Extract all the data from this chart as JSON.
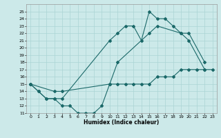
{
  "xlabel": "Humidex (Indice chaleur)",
  "xlim": [
    -0.5,
    23.5
  ],
  "ylim": [
    11,
    26
  ],
  "yticks": [
    11,
    12,
    13,
    14,
    15,
    16,
    17,
    18,
    19,
    20,
    21,
    22,
    23,
    24,
    25
  ],
  "xticks": [
    0,
    1,
    2,
    3,
    4,
    5,
    6,
    7,
    8,
    9,
    10,
    11,
    12,
    13,
    14,
    15,
    16,
    17,
    18,
    19,
    20,
    21,
    22,
    23
  ],
  "bg_color": "#cce9e9",
  "grid_color": "#aad4d4",
  "line_color": "#1a6868",
  "line1_x": [
    0,
    1,
    2,
    3,
    4,
    10,
    11,
    12,
    13,
    14,
    15,
    16,
    17,
    18,
    19,
    20,
    22
  ],
  "line1_y": [
    15,
    14,
    13,
    13,
    13,
    21,
    22,
    23,
    23,
    21,
    25,
    24,
    24,
    23,
    22,
    22,
    18
  ],
  "line2_x": [
    0,
    3,
    4,
    10,
    11,
    15,
    16,
    19,
    20,
    22
  ],
  "line2_y": [
    15,
    14,
    14,
    15,
    18,
    22,
    23,
    22,
    21,
    17
  ],
  "line3_x": [
    0,
    1,
    2,
    3,
    4,
    5,
    6,
    7,
    8,
    9,
    10,
    11,
    12,
    13,
    14,
    15,
    16,
    17,
    18,
    19,
    20,
    21,
    22,
    23
  ],
  "line3_y": [
    15,
    14,
    13,
    13,
    12,
    12,
    11,
    11,
    11,
    12,
    15,
    15,
    15,
    15,
    15,
    15,
    16,
    16,
    16,
    17,
    17,
    17,
    17,
    17
  ]
}
